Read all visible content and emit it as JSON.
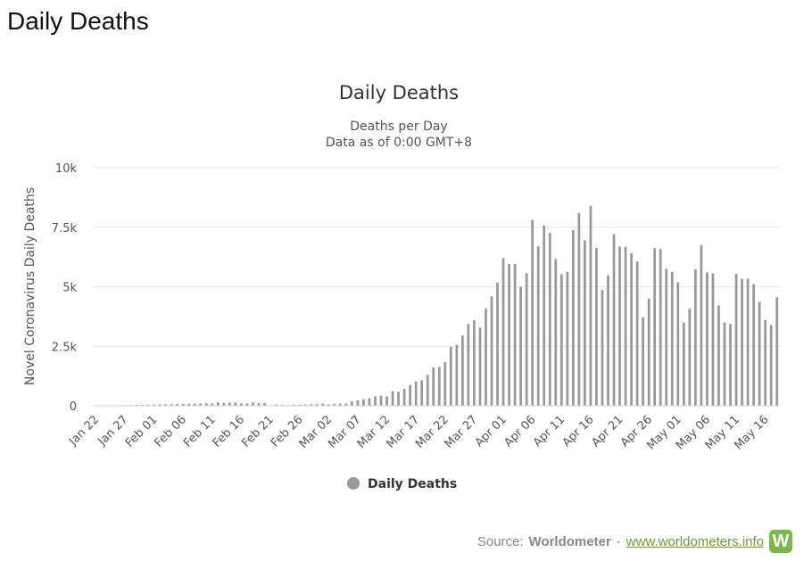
{
  "page": {
    "heading": "Daily Deaths"
  },
  "source": {
    "prefix": "Source:",
    "name": "Worldometer",
    "separator": "-",
    "link_text": "www.worldometers.info",
    "logo_letter": "W"
  },
  "colors": {
    "bar": "#999999",
    "grid": "#e6e6e6",
    "link": "#6a9e2f",
    "logo": "#7ab648"
  },
  "chart_data": {
    "type": "bar",
    "title": "Daily Deaths",
    "subtitle": [
      "Deaths per Day",
      "Data as of 0:00 GMT+8"
    ],
    "ylabel": "Novel Coronavirus Daily Deaths",
    "xlabel": "",
    "ylim": [
      0,
      10000
    ],
    "y_ticks": [
      0,
      2500,
      5000,
      7500,
      10000
    ],
    "y_tick_labels": [
      "0",
      "2.5k",
      "5k",
      "7.5k",
      "10k"
    ],
    "x_tick_labels": [
      "Jan 22",
      "Jan 27",
      "Feb 01",
      "Feb 06",
      "Feb 11",
      "Feb 16",
      "Feb 21",
      "Feb 26",
      "Mar 02",
      "Mar 07",
      "Mar 12",
      "Mar 17",
      "Mar 22",
      "Mar 27",
      "Apr 01",
      "Apr 06",
      "Apr 11",
      "Apr 16",
      "Apr 21",
      "Apr 26",
      "May 01",
      "May 06",
      "May 11",
      "May 16"
    ],
    "x_tick_every": 5,
    "grid": true,
    "legend": {
      "position": "bottom-center",
      "entries": [
        "Daily Deaths"
      ]
    },
    "series": [
      {
        "name": "Daily Deaths",
        "start_date": "Jan 22",
        "values": [
          17,
          0,
          8,
          16,
          14,
          26,
          26,
          38,
          43,
          46,
          45,
          57,
          64,
          65,
          73,
          73,
          86,
          89,
          97,
          108,
          97,
          146,
          121,
          143,
          142,
          105,
          98,
          139,
          116,
          119,
          8,
          49,
          37,
          29,
          43,
          44,
          51,
          64,
          71,
          92,
          59,
          80,
          96,
          102,
          186,
          225,
          272,
          318,
          395,
          430,
          390,
          621,
          589,
          714,
          874,
          1021,
          1071,
          1297,
          1611,
          1634,
          1834,
          2480,
          2559,
          2951,
          3430,
          3590,
          3287,
          4083,
          4590,
          5169,
          6203,
          5958,
          5963,
          4998,
          5568,
          7806,
          6694,
          7573,
          7270,
          6166,
          5527,
          5629,
          7377,
          8096,
          6948,
          8397,
          6624,
          4858,
          5475,
          7204,
          6688,
          6674,
          6406,
          6065,
          3723,
          4502,
          6622,
          6584,
          5753,
          5626,
          5190,
          3491,
          4077,
          5726,
          6754,
          5594,
          5566,
          4209,
          3500,
          3441,
          5541,
          5331,
          5339,
          5105,
          4359,
          3602,
          3398,
          4562
        ]
      }
    ]
  }
}
